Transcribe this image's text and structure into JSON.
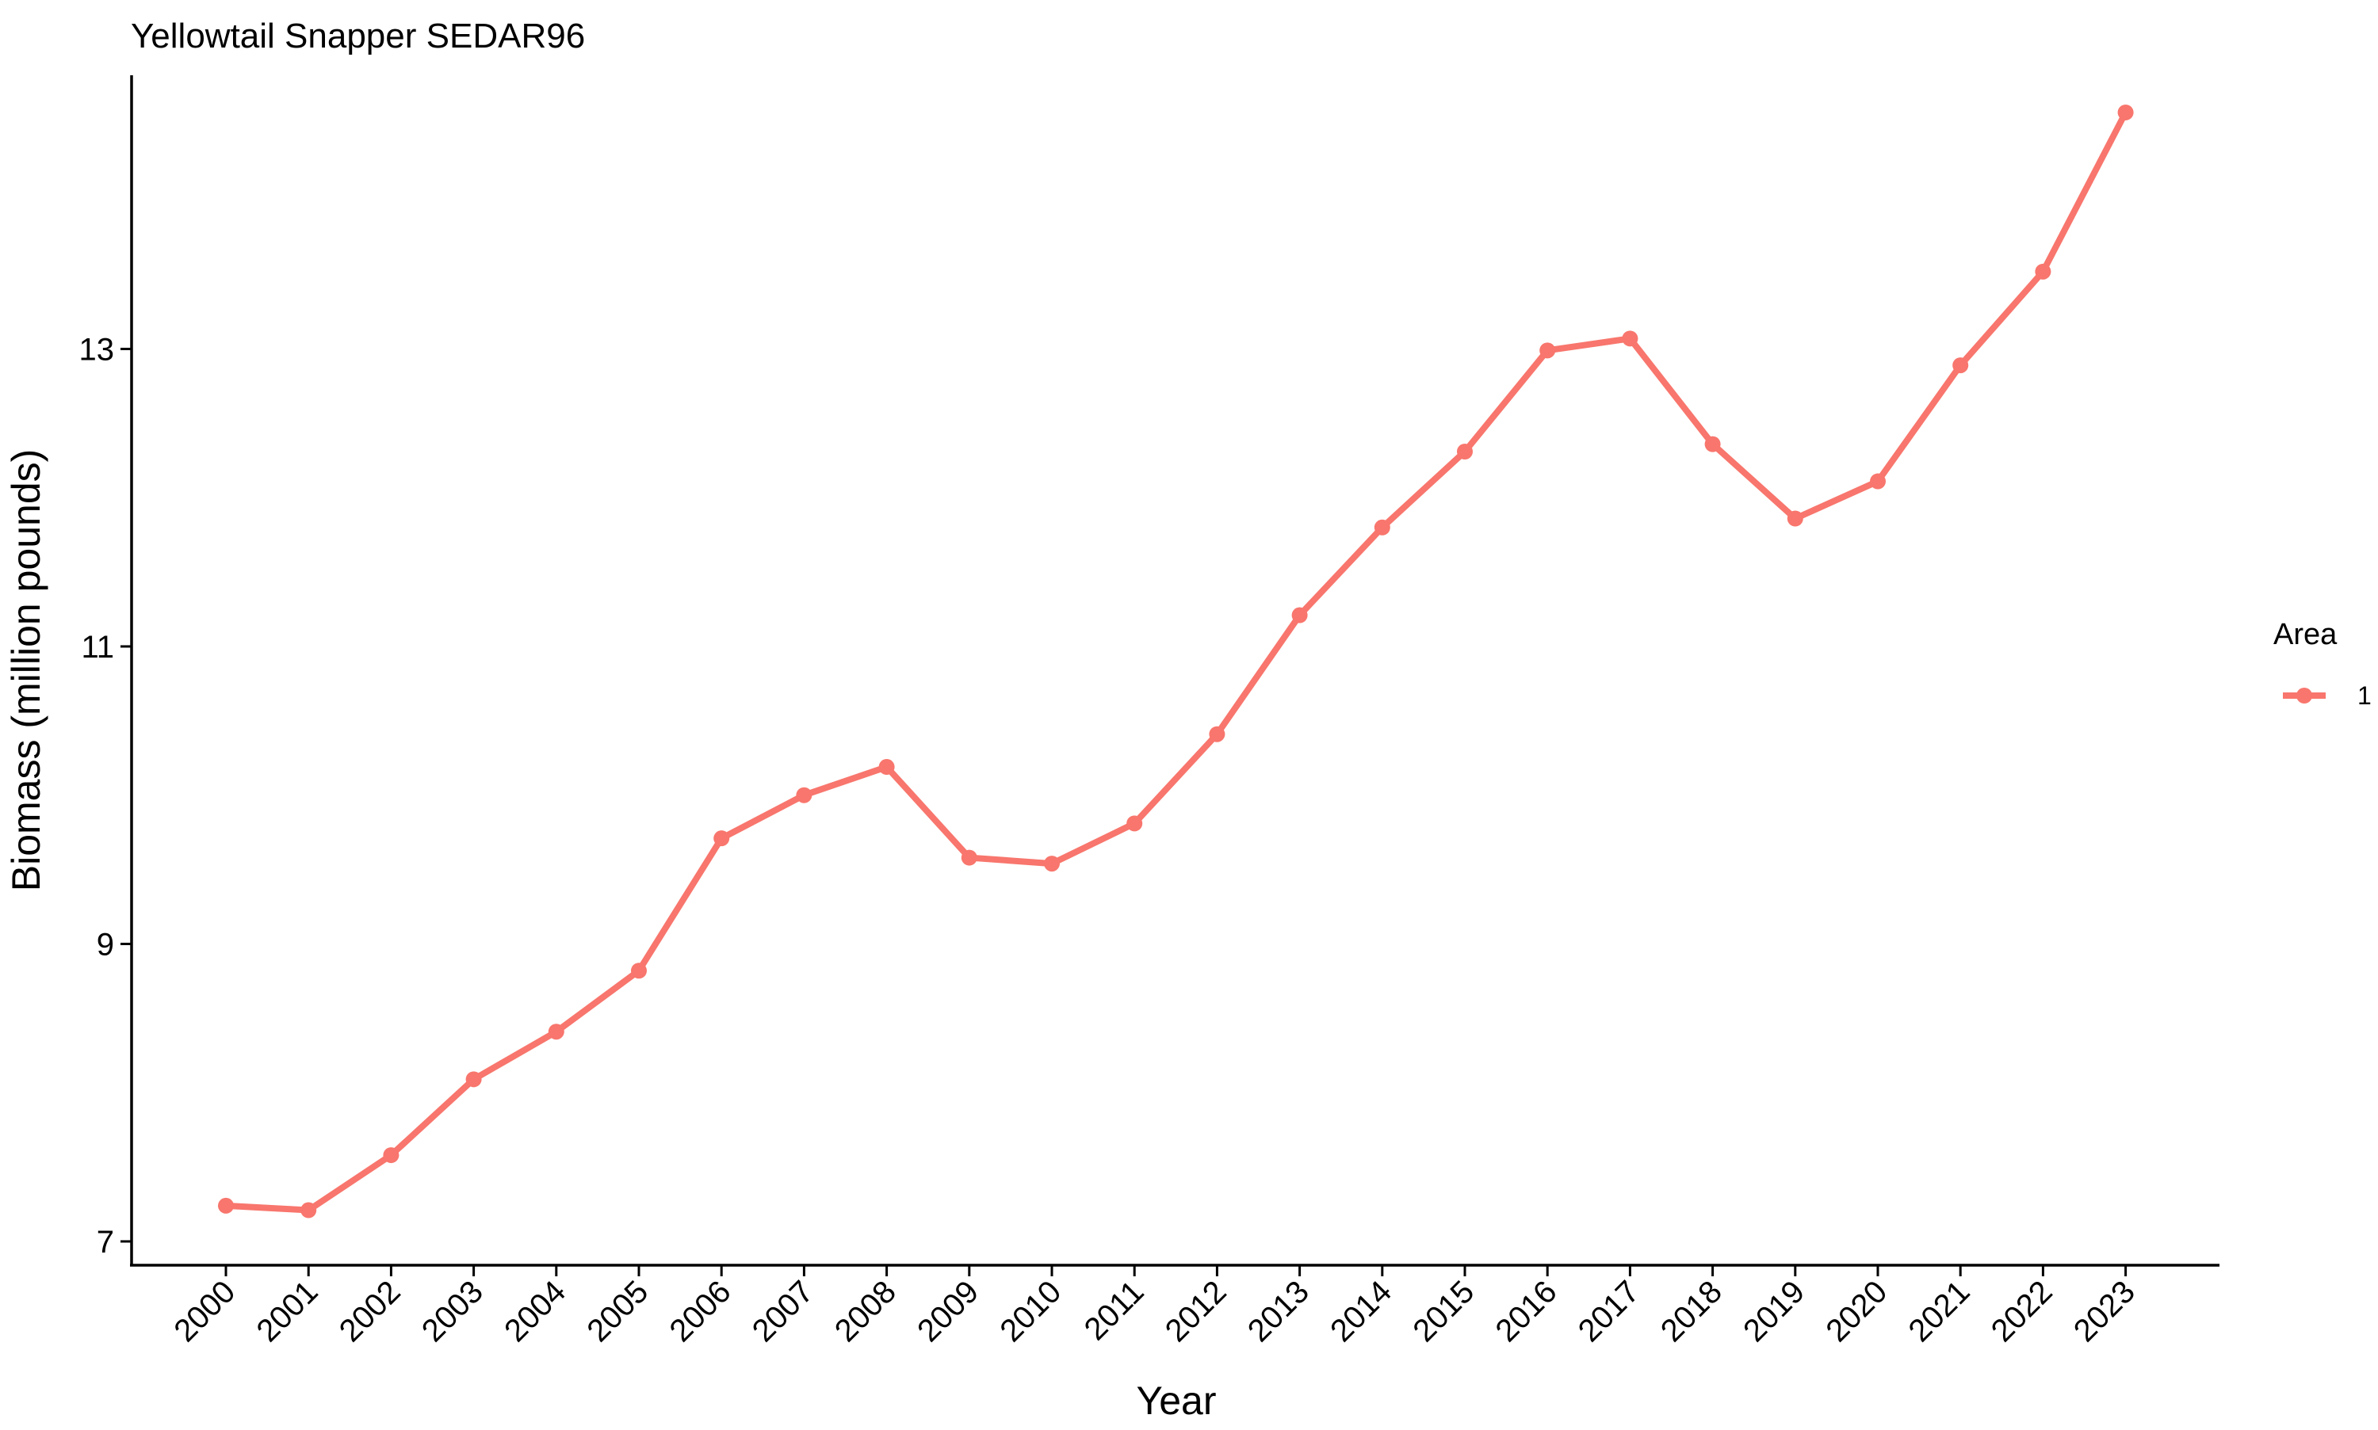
{
  "chart_data": {
    "type": "line",
    "title": "Yellowtail Snapper SEDAR96",
    "xlabel": "Year",
    "ylabel": "Biomass (million pounds)",
    "x": [
      "2000",
      "2001",
      "2002",
      "2003",
      "2004",
      "2005",
      "2006",
      "2007",
      "2008",
      "2009",
      "2010",
      "2011",
      "2012",
      "2013",
      "2014",
      "2015",
      "2016",
      "2017",
      "2018",
      "2019",
      "2020",
      "2021",
      "2022",
      "2023"
    ],
    "series": [
      {
        "name": "1",
        "color": "#F8766D",
        "values": [
          7.24,
          7.21,
          7.58,
          8.09,
          8.41,
          8.82,
          9.71,
          10.0,
          10.19,
          9.58,
          9.54,
          9.81,
          10.41,
          11.21,
          11.8,
          12.31,
          12.99,
          13.07,
          12.36,
          11.86,
          12.11,
          12.89,
          13.52,
          14.59
        ]
      }
    ],
    "yticks": [
      7,
      9,
      11,
      13
    ],
    "ylim": [
      6.84,
      14.84
    ],
    "grid": false,
    "legend": {
      "title": "Area",
      "position": "right"
    }
  }
}
